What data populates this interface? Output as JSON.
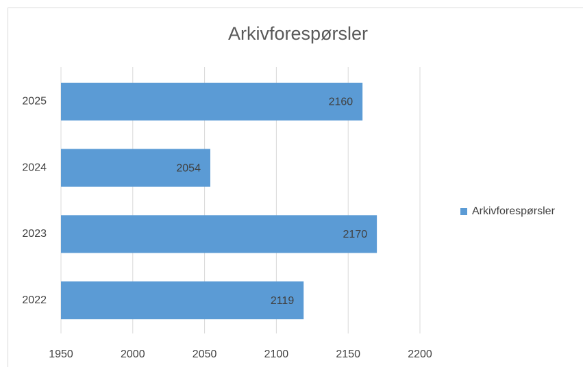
{
  "chart_data": {
    "type": "bar",
    "orientation": "horizontal",
    "title": "Arkivforespørsler",
    "categories": [
      "2022",
      "2023",
      "2024",
      "2025"
    ],
    "series": [
      {
        "name": "Arkivforespørsler",
        "color": "#5b9bd5",
        "values": [
          2119,
          2170,
          2054,
          2160
        ]
      }
    ],
    "xlim": [
      1950,
      2200
    ],
    "xticks": [
      1950,
      2000,
      2050,
      2100,
      2150,
      2200
    ],
    "grid": true,
    "legend": "right",
    "data_labels": true
  }
}
